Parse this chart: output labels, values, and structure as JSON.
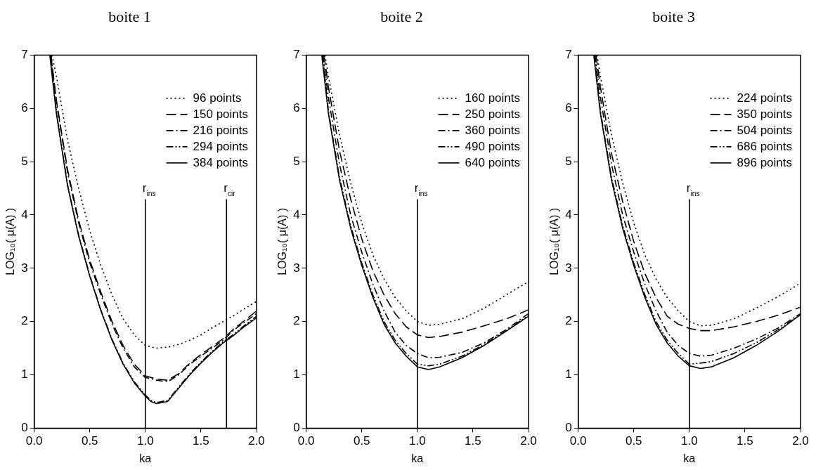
{
  "chart_data": [
    {
      "type": "line",
      "title": "boite 1",
      "xlabel": "ka",
      "ylabel": "LOG₁₀( μ(A) )",
      "xlim": [
        0,
        2
      ],
      "ylim": [
        0,
        7
      ],
      "xticks": [
        {
          "value": 0,
          "label": "0.0"
        },
        {
          "value": 0.5,
          "label": "0.5"
        },
        {
          "value": 1,
          "label": "1.0"
        },
        {
          "value": 1.5,
          "label": "1.5"
        },
        {
          "value": 2,
          "label": "2.0"
        }
      ],
      "yticks": [
        0,
        1,
        2,
        3,
        4,
        5,
        6,
        7
      ],
      "grid": false,
      "legend": "top right",
      "marker": "none",
      "ref_lines": [
        {
          "axis": "x",
          "value": 1,
          "label": "r$_{ins}$"
        },
        {
          "axis": "x",
          "value": 1.73,
          "label": "r$_{cir}$"
        }
      ],
      "series": [
        {
          "name": "96 points",
          "color": "#000000",
          "line_style": "dotted",
          "x": [
            0.16,
            0.2,
            0.3,
            0.4,
            0.5,
            0.6,
            0.7,
            0.8,
            0.9,
            1.0,
            1.1,
            1.2,
            1.3,
            1.4,
            1.5,
            1.6,
            1.7,
            1.8,
            1.9,
            2.0
          ],
          "values": [
            7,
            6.6,
            5.4,
            4.5,
            3.7,
            3.05,
            2.5,
            2.05,
            1.75,
            1.55,
            1.5,
            1.52,
            1.57,
            1.65,
            1.75,
            1.88,
            2.0,
            2.12,
            2.25,
            2.38
          ]
        },
        {
          "name": "150 points",
          "color": "#000000",
          "line_style": "dashed",
          "x": [
            0.15,
            0.2,
            0.3,
            0.4,
            0.5,
            0.6,
            0.7,
            0.8,
            0.9,
            1.0,
            1.1,
            1.2,
            1.3,
            1.4,
            1.5,
            1.6,
            1.7,
            1.8,
            1.9,
            2.0
          ],
          "values": [
            7,
            6.15,
            4.85,
            3.9,
            3.15,
            2.55,
            2.0,
            1.55,
            1.2,
            0.98,
            0.92,
            0.9,
            1.02,
            1.22,
            1.38,
            1.53,
            1.68,
            1.87,
            2.03,
            2.2
          ]
        },
        {
          "name": "216 points",
          "color": "#000000",
          "line_style": "dashed",
          "x": [
            0.15,
            0.2,
            0.3,
            0.4,
            0.5,
            0.6,
            0.7,
            0.8,
            0.9,
            1.0,
            1.1,
            1.2,
            1.3,
            1.4,
            1.5,
            1.6,
            1.7,
            1.8,
            1.9,
            2.0
          ],
          "values": [
            7,
            6.1,
            4.8,
            3.85,
            3.1,
            2.5,
            1.95,
            1.5,
            1.15,
            0.95,
            0.9,
            0.87,
            1.0,
            1.2,
            1.35,
            1.5,
            1.65,
            1.85,
            2.0,
            2.15
          ]
        },
        {
          "name": "294 points",
          "color": "#000000",
          "line_style": "dashed",
          "x": [
            0.15,
            0.2,
            0.3,
            0.4,
            0.5,
            0.6,
            0.7,
            0.8,
            0.9,
            1.0,
            1.05,
            1.1,
            1.2,
            1.3,
            1.4,
            1.5,
            1.6,
            1.7,
            1.8,
            1.9,
            2.0
          ],
          "values": [
            7,
            5.92,
            4.57,
            3.62,
            2.87,
            2.22,
            1.67,
            1.22,
            0.87,
            0.62,
            0.52,
            0.48,
            0.52,
            0.77,
            1.02,
            1.24,
            1.44,
            1.62,
            1.77,
            1.94,
            2.1
          ]
        },
        {
          "name": "384 points",
          "color": "#000000",
          "line_style": "solid",
          "x": [
            0.14,
            0.2,
            0.3,
            0.4,
            0.5,
            0.6,
            0.7,
            0.8,
            0.9,
            1.0,
            1.05,
            1.1,
            1.2,
            1.3,
            1.4,
            1.5,
            1.6,
            1.7,
            1.8,
            1.9,
            2.0
          ],
          "values": [
            7,
            5.9,
            4.55,
            3.6,
            2.85,
            2.2,
            1.65,
            1.2,
            0.85,
            0.6,
            0.5,
            0.46,
            0.5,
            0.75,
            1.0,
            1.22,
            1.42,
            1.6,
            1.75,
            1.92,
            2.07
          ]
        }
      ]
    },
    {
      "type": "line",
      "title": "boite 2",
      "xlabel": "ka",
      "ylabel": "LOG₁₀( μ(A) )",
      "xlim": [
        0,
        2
      ],
      "ylim": [
        0,
        7
      ],
      "xticks": [
        {
          "value": 0,
          "label": "0.0"
        },
        {
          "value": 0.5,
          "label": "0.5"
        },
        {
          "value": 1,
          "label": "1.0"
        },
        {
          "value": 1.5,
          "label": "1.5"
        },
        {
          "value": 2,
          "label": "2.0"
        }
      ],
      "yticks": [
        0,
        1,
        2,
        3,
        4,
        5,
        6,
        7
      ],
      "grid": false,
      "legend": "top right",
      "marker": "none",
      "ref_lines": [
        {
          "axis": "x",
          "value": 1,
          "label": "r$_{ins}$"
        }
      ],
      "series": [
        {
          "name": "160 points",
          "color": "#000000",
          "line_style": "dotted",
          "x": [
            0.17,
            0.2,
            0.3,
            0.4,
            0.5,
            0.6,
            0.7,
            0.8,
            0.9,
            1.0,
            1.1,
            1.2,
            1.4,
            1.6,
            1.8,
            2.0
          ],
          "values": [
            7,
            6.6,
            5.5,
            4.6,
            3.85,
            3.25,
            2.8,
            2.45,
            2.2,
            2.0,
            1.93,
            1.95,
            2.05,
            2.25,
            2.5,
            2.75
          ]
        },
        {
          "name": "250 points",
          "color": "#000000",
          "line_style": "dashed",
          "x": [
            0.16,
            0.2,
            0.3,
            0.4,
            0.5,
            0.6,
            0.7,
            0.8,
            0.9,
            1.0,
            1.1,
            1.2,
            1.4,
            1.6,
            1.8,
            2.0
          ],
          "values": [
            7,
            6.4,
            5.2,
            4.3,
            3.55,
            2.95,
            2.5,
            2.15,
            1.9,
            1.75,
            1.7,
            1.72,
            1.8,
            1.92,
            2.05,
            2.22
          ]
        },
        {
          "name": "360 points",
          "color": "#000000",
          "line_style": "dashed",
          "x": [
            0.15,
            0.2,
            0.3,
            0.4,
            0.5,
            0.6,
            0.7,
            0.8,
            0.9,
            1.0,
            1.1,
            1.2,
            1.4,
            1.6,
            1.8,
            2.0
          ],
          "values": [
            7,
            6.2,
            4.95,
            4.0,
            3.3,
            2.7,
            2.2,
            1.8,
            1.55,
            1.4,
            1.32,
            1.33,
            1.42,
            1.6,
            1.85,
            2.15
          ]
        },
        {
          "name": "490 points",
          "color": "#000000",
          "line_style": "dashed",
          "x": [
            0.15,
            0.2,
            0.3,
            0.4,
            0.5,
            0.6,
            0.7,
            0.8,
            0.9,
            1.0,
            1.1,
            1.2,
            1.4,
            1.6,
            1.8,
            2.0
          ],
          "values": [
            7,
            5.95,
            4.7,
            3.8,
            3.1,
            2.5,
            2.0,
            1.65,
            1.4,
            1.2,
            1.17,
            1.2,
            1.35,
            1.57,
            1.83,
            2.12
          ]
        },
        {
          "name": "640 points",
          "color": "#000000",
          "line_style": "solid",
          "x": [
            0.14,
            0.2,
            0.3,
            0.4,
            0.5,
            0.6,
            0.7,
            0.8,
            0.9,
            1.0,
            1.1,
            1.2,
            1.4,
            1.6,
            1.8,
            2.0
          ],
          "values": [
            7,
            5.9,
            4.65,
            3.75,
            3.05,
            2.45,
            1.95,
            1.6,
            1.35,
            1.15,
            1.1,
            1.15,
            1.32,
            1.55,
            1.82,
            2.1
          ]
        }
      ]
    },
    {
      "type": "line",
      "title": "boite 3",
      "xlabel": "ka",
      "ylabel": "LOG₁₀( μ(A) )",
      "xlim": [
        0,
        2
      ],
      "ylim": [
        0,
        7
      ],
      "xticks": [
        {
          "value": 0,
          "label": "0.0"
        },
        {
          "value": 0.5,
          "label": "0.5"
        },
        {
          "value": 1,
          "label": "1.0"
        },
        {
          "value": 1.5,
          "label": "1.5"
        },
        {
          "value": 2,
          "label": "2.0"
        }
      ],
      "yticks": [
        0,
        1,
        2,
        3,
        4,
        5,
        6,
        7
      ],
      "grid": false,
      "legend": "top right",
      "marker": "none",
      "ref_lines": [
        {
          "axis": "x",
          "value": 1,
          "label": "r$_{ins}$"
        }
      ],
      "series": [
        {
          "name": "224 points",
          "color": "#000000",
          "line_style": "dotted",
          "x": [
            0.17,
            0.2,
            0.3,
            0.4,
            0.5,
            0.6,
            0.7,
            0.8,
            0.9,
            1.0,
            1.1,
            1.2,
            1.4,
            1.6,
            1.8,
            2.0
          ],
          "values": [
            7,
            6.6,
            5.5,
            4.6,
            3.85,
            3.25,
            2.8,
            2.45,
            2.2,
            2.0,
            1.92,
            1.93,
            2.05,
            2.25,
            2.47,
            2.72
          ]
        },
        {
          "name": "350 points",
          "color": "#000000",
          "line_style": "dashed",
          "x": [
            0.16,
            0.2,
            0.3,
            0.4,
            0.5,
            0.6,
            0.7,
            0.8,
            0.9,
            1.0,
            1.1,
            1.2,
            1.4,
            1.6,
            1.8,
            2.0
          ],
          "values": [
            7,
            6.4,
            5.15,
            4.25,
            3.5,
            2.9,
            2.45,
            2.1,
            1.95,
            1.87,
            1.83,
            1.83,
            1.9,
            2.0,
            2.12,
            2.27
          ]
        },
        {
          "name": "504 points",
          "color": "#000000",
          "line_style": "dashed",
          "x": [
            0.15,
            0.2,
            0.3,
            0.4,
            0.5,
            0.6,
            0.7,
            0.8,
            0.9,
            1.0,
            1.1,
            1.2,
            1.4,
            1.6,
            1.8,
            2.0
          ],
          "values": [
            7,
            6.2,
            4.95,
            4.0,
            3.3,
            2.7,
            2.2,
            1.8,
            1.55,
            1.4,
            1.35,
            1.37,
            1.5,
            1.67,
            1.88,
            2.15
          ]
        },
        {
          "name": "686 points",
          "color": "#000000",
          "line_style": "dashed",
          "x": [
            0.15,
            0.2,
            0.3,
            0.4,
            0.5,
            0.6,
            0.7,
            0.8,
            0.9,
            1.0,
            1.1,
            1.2,
            1.4,
            1.6,
            1.8,
            2.0
          ],
          "values": [
            7,
            5.95,
            4.7,
            3.8,
            3.1,
            2.5,
            2.0,
            1.65,
            1.4,
            1.2,
            1.22,
            1.25,
            1.4,
            1.6,
            1.85,
            2.13
          ]
        },
        {
          "name": "896 points",
          "color": "#000000",
          "line_style": "solid",
          "x": [
            0.14,
            0.2,
            0.3,
            0.4,
            0.5,
            0.6,
            0.7,
            0.8,
            0.9,
            1.0,
            1.1,
            1.2,
            1.4,
            1.6,
            1.8,
            2.0
          ],
          "values": [
            7,
            5.9,
            4.65,
            3.75,
            3.05,
            2.45,
            1.95,
            1.6,
            1.35,
            1.17,
            1.12,
            1.15,
            1.32,
            1.55,
            1.82,
            2.13
          ]
        }
      ]
    }
  ]
}
